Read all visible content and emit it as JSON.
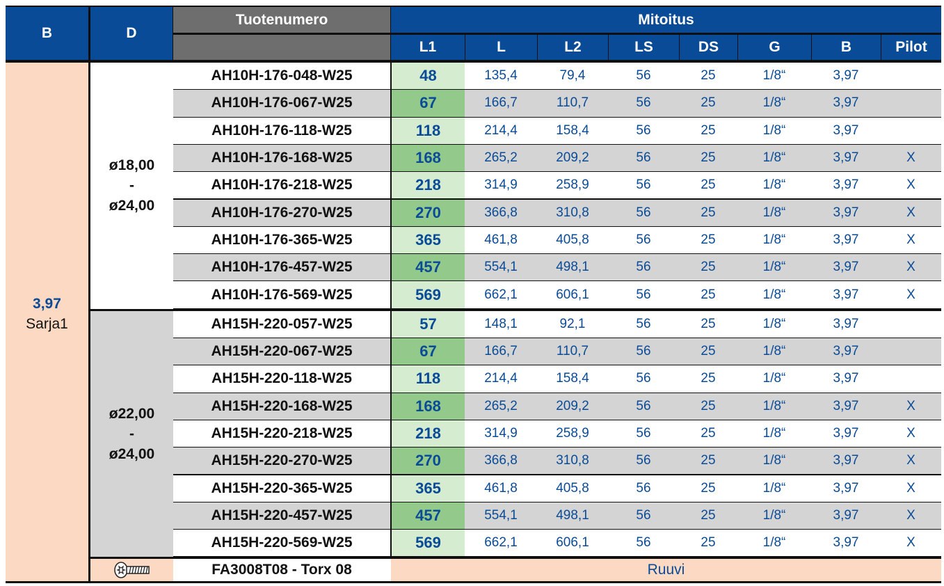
{
  "header": {
    "b_label": "B",
    "d_label": "D",
    "product_label": "Tuotenumero",
    "dims_label": "Mitoitus",
    "columns": [
      "L1",
      "L",
      "L2",
      "LS",
      "DS",
      "G",
      "B",
      "Pilot"
    ]
  },
  "left": {
    "b_value": "3,97",
    "b_series": "Sarja1"
  },
  "groups": [
    {
      "d_from": "ø18,00",
      "d_dash": "-",
      "d_to": "ø24,00",
      "rows": [
        {
          "product": "AH10H-176-048-W25",
          "L1": "48",
          "L": "135,4",
          "L2": "79,4",
          "LS": "56",
          "DS": "25",
          "G": "1/8“",
          "B": "3,97",
          "Pilot": ""
        },
        {
          "product": "AH10H-176-067-W25",
          "L1": "67",
          "L": "166,7",
          "L2": "110,7",
          "LS": "56",
          "DS": "25",
          "G": "1/8“",
          "B": "3,97",
          "Pilot": ""
        },
        {
          "product": "AH10H-176-118-W25",
          "L1": "118",
          "L": "214,4",
          "L2": "158,4",
          "LS": "56",
          "DS": "25",
          "G": "1/8“",
          "B": "3,97",
          "Pilot": ""
        },
        {
          "product": "AH10H-176-168-W25",
          "L1": "168",
          "L": "265,2",
          "L2": "209,2",
          "LS": "56",
          "DS": "25",
          "G": "1/8“",
          "B": "3,97",
          "Pilot": "X"
        },
        {
          "product": "AH10H-176-218-W25",
          "L1": "218",
          "L": "314,9",
          "L2": "258,9",
          "LS": "56",
          "DS": "25",
          "G": "1/8“",
          "B": "3,97",
          "Pilot": "X"
        },
        {
          "product": "AH10H-176-270-W25",
          "L1": "270",
          "L": "366,8",
          "L2": "310,8",
          "LS": "56",
          "DS": "25",
          "G": "1/8“",
          "B": "3,97",
          "Pilot": "X"
        },
        {
          "product": "AH10H-176-365-W25",
          "L1": "365",
          "L": "461,8",
          "L2": "405,8",
          "LS": "56",
          "DS": "25",
          "G": "1/8“",
          "B": "3,97",
          "Pilot": "X"
        },
        {
          "product": "AH10H-176-457-W25",
          "L1": "457",
          "L": "554,1",
          "L2": "498,1",
          "LS": "56",
          "DS": "25",
          "G": "1/8“",
          "B": "3,97",
          "Pilot": "X"
        },
        {
          "product": "AH10H-176-569-W25",
          "L1": "569",
          "L": "662,1",
          "L2": "606,1",
          "LS": "56",
          "DS": "25",
          "G": "1/8“",
          "B": "3,97",
          "Pilot": "X"
        }
      ]
    },
    {
      "d_from": "ø22,00",
      "d_dash": "-",
      "d_to": "ø24,00",
      "rows": [
        {
          "product": "AH15H-220-057-W25",
          "L1": "57",
          "L": "148,1",
          "L2": "92,1",
          "LS": "56",
          "DS": "25",
          "G": "1/8“",
          "B": "3,97",
          "Pilot": ""
        },
        {
          "product": "AH15H-220-067-W25",
          "L1": "67",
          "L": "166,7",
          "L2": "110,7",
          "LS": "56",
          "DS": "25",
          "G": "1/8“",
          "B": "3,97",
          "Pilot": ""
        },
        {
          "product": "AH15H-220-118-W25",
          "L1": "118",
          "L": "214,4",
          "L2": "158,4",
          "LS": "56",
          "DS": "25",
          "G": "1/8“",
          "B": "3,97",
          "Pilot": ""
        },
        {
          "product": "AH15H-220-168-W25",
          "L1": "168",
          "L": "265,2",
          "L2": "209,2",
          "LS": "56",
          "DS": "25",
          "G": "1/8“",
          "B": "3,97",
          "Pilot": "X"
        },
        {
          "product": "AH15H-220-218-W25",
          "L1": "218",
          "L": "314,9",
          "L2": "258,9",
          "LS": "56",
          "DS": "25",
          "G": "1/8“",
          "B": "3,97",
          "Pilot": "X"
        },
        {
          "product": "AH15H-220-270-W25",
          "L1": "270",
          "L": "366,8",
          "L2": "310,8",
          "LS": "56",
          "DS": "25",
          "G": "1/8“",
          "B": "3,97",
          "Pilot": "X"
        },
        {
          "product": "AH15H-220-365-W25",
          "L1": "365",
          "L": "461,8",
          "L2": "405,8",
          "LS": "56",
          "DS": "25",
          "G": "1/8“",
          "B": "3,97",
          "Pilot": "X"
        },
        {
          "product": "AH15H-220-457-W25",
          "L1": "457",
          "L": "554,1",
          "L2": "498,1",
          "LS": "56",
          "DS": "25",
          "G": "1/8“",
          "B": "3,97",
          "Pilot": "X"
        },
        {
          "product": "AH15H-220-569-W25",
          "L1": "569",
          "L": "662,1",
          "L2": "606,1",
          "LS": "56",
          "DS": "25",
          "G": "1/8“",
          "B": "3,97",
          "Pilot": "X"
        }
      ]
    }
  ],
  "footer": {
    "screw_icon": "torx-screw-icon",
    "screw_code": "FA3008T08 - Torx 08",
    "screw_label": "Ruuvi"
  },
  "colors": {
    "header_blue": "#0a4b97",
    "header_gray": "#6e6e6e",
    "peach": "#fbd9c2",
    "row_gray": "#d4d4d4",
    "l1_green_light": "#d5ecd0",
    "l1_green_dark": "#93c98b",
    "value_blue": "#0a4b97"
  }
}
